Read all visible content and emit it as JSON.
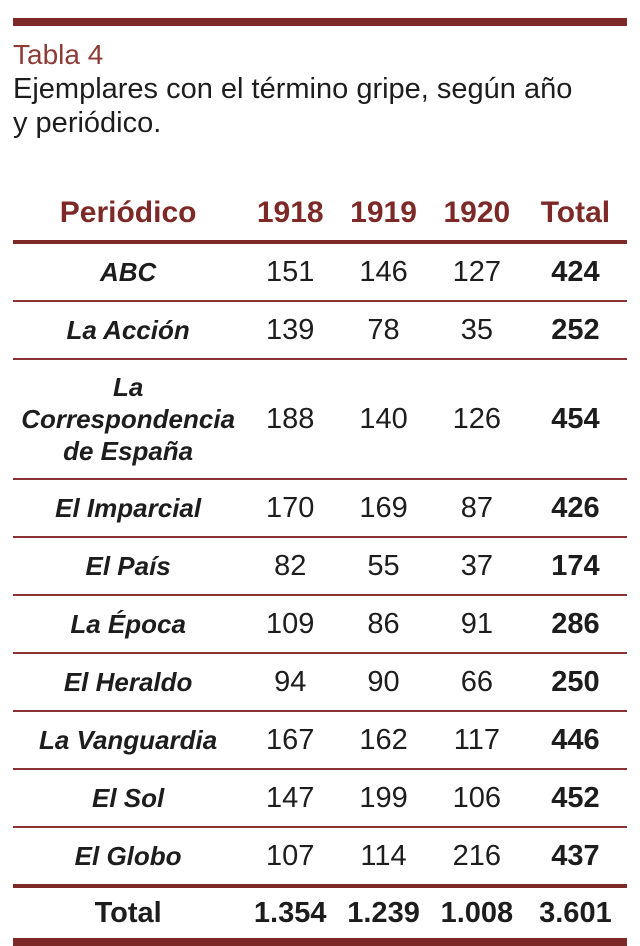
{
  "page": {
    "title": "Tabla 4",
    "caption_line1": "Ejemplares con el término gripe, según año",
    "caption_line2": "y periódico."
  },
  "colors": {
    "accent": "#7d2927",
    "separator": "#8a3431",
    "title_red": "#8e3b37",
    "text": "#1d1d1d"
  },
  "table": {
    "headers": [
      "Periódico",
      "1918",
      "1919",
      "1920",
      "Total"
    ],
    "rows": [
      {
        "name": "ABC",
        "values": [
          "151",
          "146",
          "127",
          "424"
        ]
      },
      {
        "name": "La Acción",
        "values": [
          "139",
          "78",
          "35",
          "252"
        ]
      },
      {
        "name": "La Correspondencia de España",
        "values": [
          "188",
          "140",
          "126",
          "454"
        ]
      },
      {
        "name": "El Imparcial",
        "values": [
          "170",
          "169",
          "87",
          "426"
        ]
      },
      {
        "name": "El País",
        "values": [
          "82",
          "55",
          "37",
          "174"
        ]
      },
      {
        "name": "La Época",
        "values": [
          "109",
          "86",
          "91",
          "286"
        ]
      },
      {
        "name": "El Heraldo",
        "values": [
          "94",
          "90",
          "66",
          "250"
        ]
      },
      {
        "name": "La Vanguardia",
        "values": [
          "167",
          "162",
          "117",
          "446"
        ]
      },
      {
        "name": "El Sol",
        "values": [
          "147",
          "199",
          "106",
          "452"
        ]
      },
      {
        "name": "El Globo",
        "values": [
          "107",
          "114",
          "216",
          "437"
        ]
      }
    ],
    "total_row": {
      "name": "Total",
      "values": [
        "1.354",
        "1.239",
        "1.008",
        "3.601"
      ]
    }
  }
}
